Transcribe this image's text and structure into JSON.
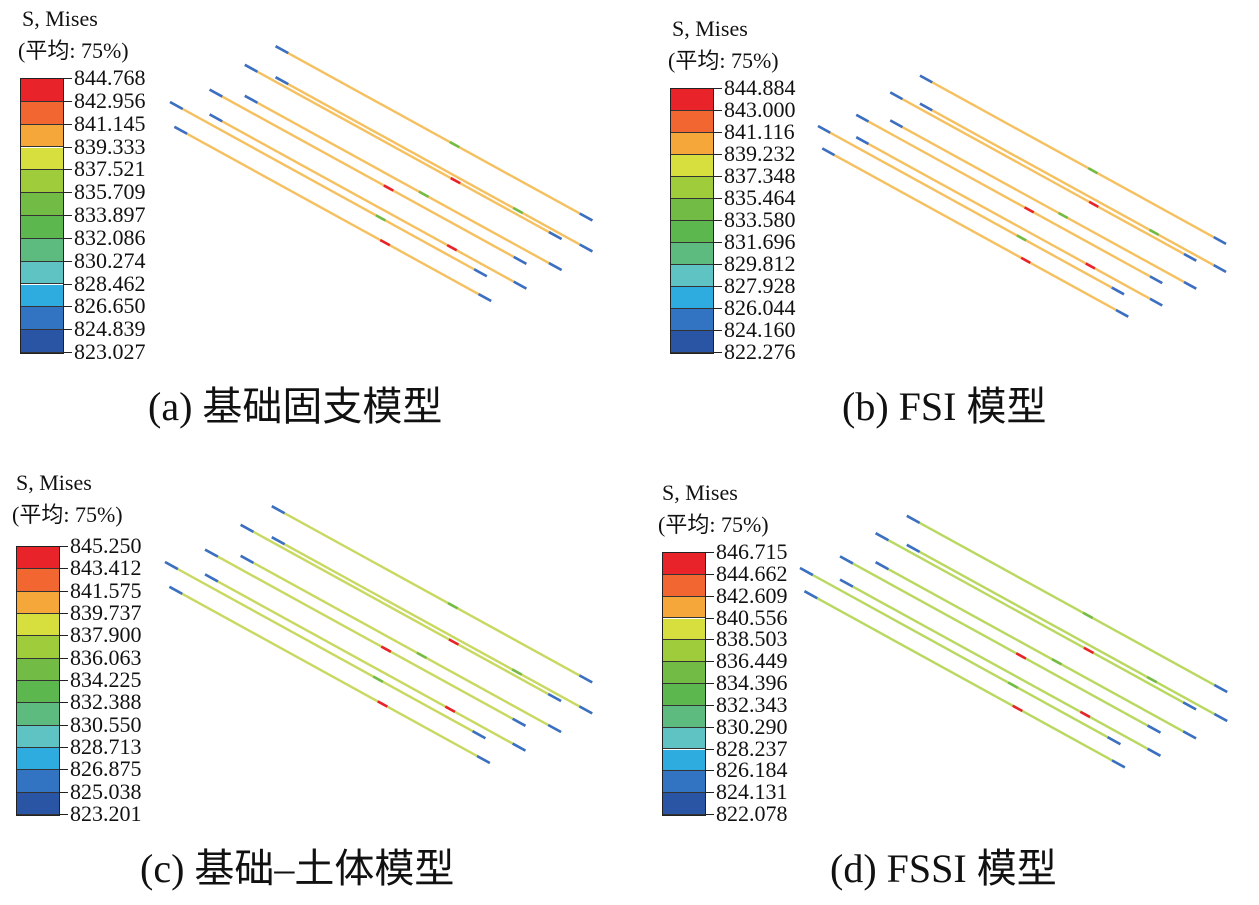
{
  "legend_colors": [
    "#e8242a",
    "#f26631",
    "#f5a73a",
    "#d7df3f",
    "#9fcc3b",
    "#72bb45",
    "#5cb84e",
    "#5dbb80",
    "#5ec3c2",
    "#2eace0",
    "#3274c2",
    "#2a55a5"
  ],
  "panels": [
    {
      "id": "a",
      "legend_title": "S, Mises",
      "legend_sub": "(平均: 75%)",
      "values": [
        "844.768",
        "842.956",
        "841.145",
        "839.333",
        "837.521",
        "835.709",
        "833.897",
        "832.086",
        "830.274",
        "828.462",
        "826.650",
        "824.839",
        "823.027"
      ],
      "caption": "(a) 基础固支模型",
      "line_color": "#f5c060"
    },
    {
      "id": "b",
      "legend_title": "S, Mises",
      "legend_sub": "(平均: 75%)",
      "values": [
        "844.884",
        "843.000",
        "841.116",
        "839.232",
        "837.348",
        "835.464",
        "833.580",
        "831.696",
        "829.812",
        "827.928",
        "826.044",
        "824.160",
        "822.276"
      ],
      "caption": "(b) FSI 模型",
      "line_color": "#f5c060"
    },
    {
      "id": "c",
      "legend_title": "S, Mises",
      "legend_sub": "(平均: 75%)",
      "values": [
        "845.250",
        "843.412",
        "841.575",
        "839.737",
        "837.900",
        "836.063",
        "834.225",
        "832.388",
        "830.550",
        "828.713",
        "826.875",
        "825.038",
        "823.201"
      ],
      "caption": "(c) 基础–土体模型",
      "line_color": "#c8d860"
    },
    {
      "id": "d",
      "legend_title": "S, Mises",
      "legend_sub": "(平均: 75%)",
      "values": [
        "846.715",
        "844.662",
        "842.609",
        "840.556",
        "838.503",
        "836.449",
        "834.396",
        "832.343",
        "830.290",
        "828.237",
        "826.184",
        "824.131",
        "822.078"
      ],
      "caption": "(d) FSSI 模型",
      "line_color": "#b8d860"
    }
  ]
}
